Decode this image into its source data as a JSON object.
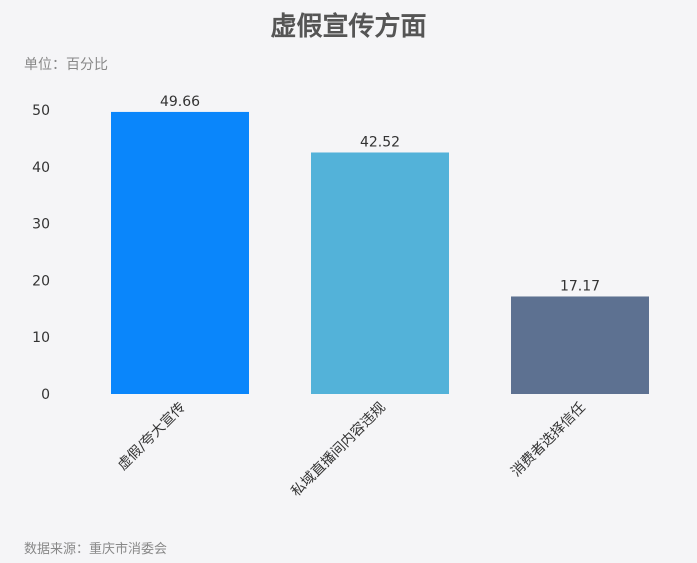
{
  "chart_data": {
    "type": "bar",
    "title": "虚假宣传方面",
    "unit_label": "单位：百分比",
    "source": "数据来源：重庆市消委会",
    "categories": [
      "虚假/夸大宣传",
      "私域直播间内容违规",
      "消费者选择信任"
    ],
    "values": [
      49.66,
      42.52,
      17.17
    ],
    "value_labels": [
      "49.66",
      "42.52",
      "17.17"
    ],
    "colors": [
      "#0a86fb",
      "#53b2d9",
      "#5d7191"
    ],
    "ylim": [
      0,
      50
    ],
    "yticks": [
      0,
      10,
      20,
      30,
      40,
      50
    ],
    "grid": false,
    "legend": false
  }
}
